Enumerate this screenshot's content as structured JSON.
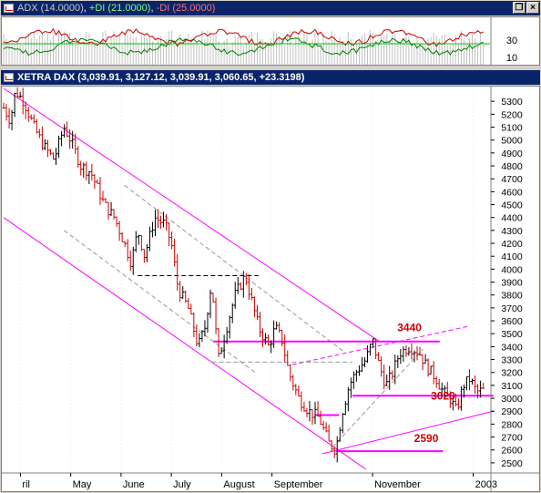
{
  "adx_panel": {
    "title_adx": "ADX (14.0000)",
    "title_pdi": "+DI (21.0000)",
    "title_mdi": "-DI (25.0000)",
    "colors": {
      "adx": "#a0a0a0",
      "pdi": "#008000",
      "mdi": "#cc0000",
      "level": "#00c000"
    },
    "ticks": [
      "30",
      "10"
    ]
  },
  "price_panel": {
    "title": "XETRA DAX (3,039.91, 3,127.12, 3,039.91, 3,060.65, +23.3198)"
  },
  "window_buttons": {
    "restore": "❐",
    "close": "×"
  },
  "chart_data": {
    "type": "bar",
    "ylim": [
      2450,
      5400
    ],
    "y_ticks": [
      2500,
      2600,
      2700,
      2800,
      2900,
      3000,
      3100,
      3200,
      3300,
      3400,
      3500,
      3600,
      3700,
      3800,
      3900,
      4000,
      4100,
      4200,
      4300,
      4400,
      4500,
      4600,
      4700,
      4800,
      4900,
      5000,
      5100,
      5200,
      5300
    ],
    "x_months": [
      "ril",
      "May",
      "June",
      "July",
      "August",
      "September",
      "November",
      "2003"
    ],
    "x_month_pos": [
      0.5,
      2.0,
      3.5,
      5.0,
      6.5,
      8.0,
      11.0,
      14.0
    ],
    "xlim": [
      0,
      14.5
    ],
    "annotations": [
      {
        "label": "3440",
        "x": 12.1,
        "y": 3520,
        "color": "#cc0000"
      },
      {
        "label": "3020",
        "x": 13.1,
        "y": 2990,
        "color": "#cc0000"
      },
      {
        "label": "2590",
        "x": 12.6,
        "y": 2660,
        "color": "#cc0000"
      }
    ],
    "levels": [
      {
        "y": 3440,
        "x1": 6.25,
        "x2": 13.0,
        "color": "#ff00ff"
      },
      {
        "y": 3020,
        "x1": 10.4,
        "x2": 14.6,
        "color": "#ff00ff"
      },
      {
        "y": 2590,
        "x1": 9.9,
        "x2": 13.1,
        "color": "#ff00ff"
      },
      {
        "y": 2870,
        "x1": 9.3,
        "x2": 10.0,
        "color": "#ff00ff"
      }
    ],
    "channel": [
      {
        "x1": 0.0,
        "y1": 5400,
        "x2": 11.2,
        "y2": 3440,
        "color": "#ff00ff"
      },
      {
        "x1": 0.0,
        "y1": 4400,
        "x2": 10.8,
        "y2": 2450,
        "color": "#ff00ff"
      },
      {
        "x1": 9.5,
        "y1": 2570,
        "x2": 14.6,
        "y2": 2900,
        "color": "#ff00ff"
      }
    ],
    "dashed": [
      {
        "x1": 8.6,
        "y1": 3260,
        "x2": 13.9,
        "y2": 3560,
        "color": "#ff00ff"
      },
      {
        "x1": 4.0,
        "y1": 3950,
        "x2": 7.6,
        "y2": 3950,
        "color": "#000000"
      },
      {
        "x1": 6.2,
        "y1": 3280,
        "x2": 10.4,
        "y2": 3280,
        "color": "#999999"
      },
      {
        "x1": 1.8,
        "y1": 4300,
        "x2": 7.5,
        "y2": 3200,
        "color": "#999999"
      },
      {
        "x1": 3.6,
        "y1": 4650,
        "x2": 10.2,
        "y2": 3350,
        "color": "#999999"
      },
      {
        "x1": 9.8,
        "y1": 2620,
        "x2": 12.5,
        "y2": 3380,
        "color": "#999999"
      }
    ],
    "series": [
      {
        "name": "XETRA DAX",
        "values": []
      }
    ]
  }
}
